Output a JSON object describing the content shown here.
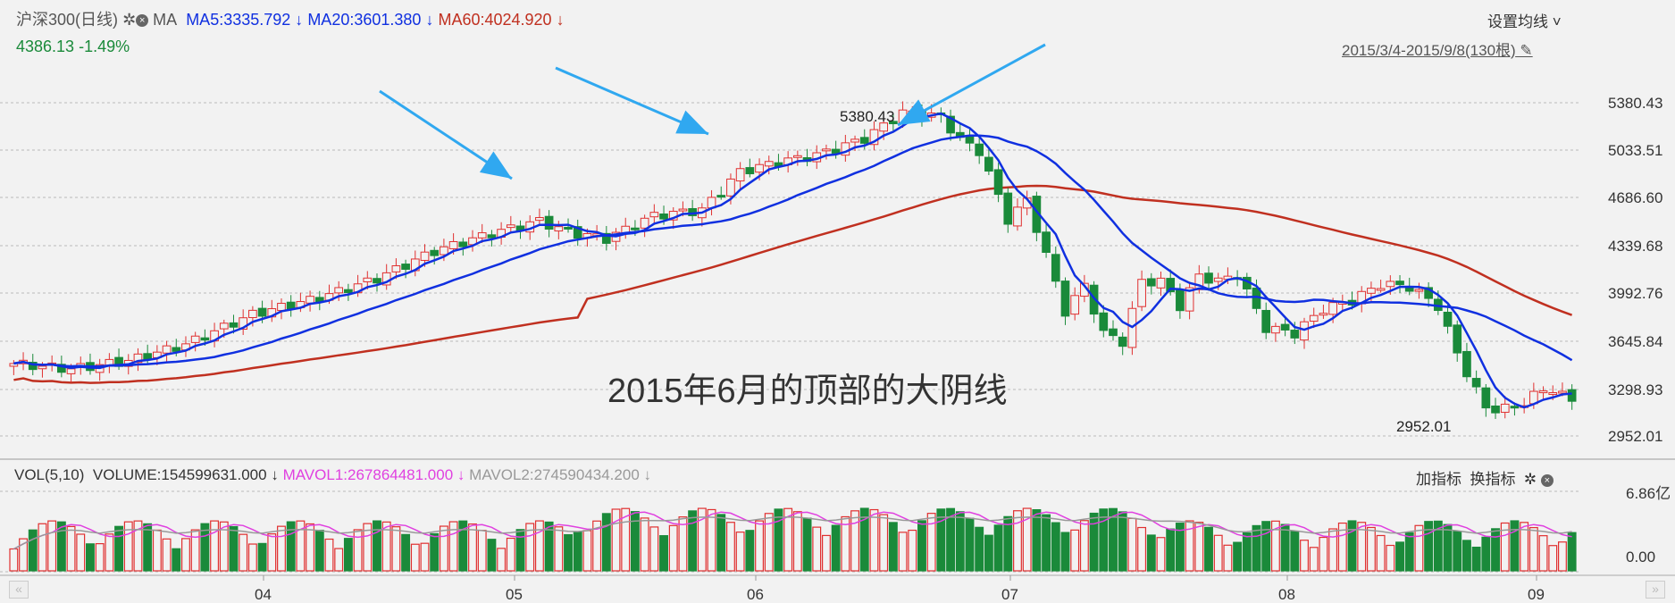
{
  "header": {
    "symbol": "沪深300",
    "period": "(日线)",
    "indicator": "MA",
    "ma5": "MA5:3335.792",
    "ma20": "MA20:3601.380",
    "ma60": "MA60:4024.920",
    "price": "4386.13",
    "change": "-1.49%",
    "settings_label": "设置均线",
    "range_label": "2015/3/4-2015/9/8(130根)"
  },
  "volume_header": {
    "vol": "VOL(5,10)",
    "volume": "VOLUME:154599631.000",
    "mavol1": "MAVOL1:267864481.000",
    "mavol2": "MAVOL2:274590434.200",
    "add_indicator": "加指标",
    "switch_indicator": "换指标"
  },
  "annotation_text": "2015年6月的顶部的大阴线",
  "colors": {
    "up": "#e03030",
    "down": "#1a8a3a",
    "ma5": "#1030e0",
    "ma60": "#c03020",
    "mavol1": "#e040e0",
    "mavol2": "#999999",
    "arrow": "#30a8f0"
  },
  "chart_data": {
    "type": "candlestick",
    "title": "",
    "price_ticks": [
      "5380.43",
      "5033.51",
      "4686.60",
      "4339.68",
      "3992.76",
      "3645.84",
      "3298.93",
      "2952.01"
    ],
    "volume_ticks": [
      "6.86亿",
      "0.00"
    ],
    "x_ticks": [
      "04",
      "05",
      "06",
      "07",
      "08",
      "09"
    ],
    "high_label": "5380.43",
    "low_label": "2952.01",
    "ylim": [
      2952.01,
      5380.43
    ],
    "grid": true,
    "annotations": [
      "2015年6月的顶部的大阴线"
    ]
  }
}
